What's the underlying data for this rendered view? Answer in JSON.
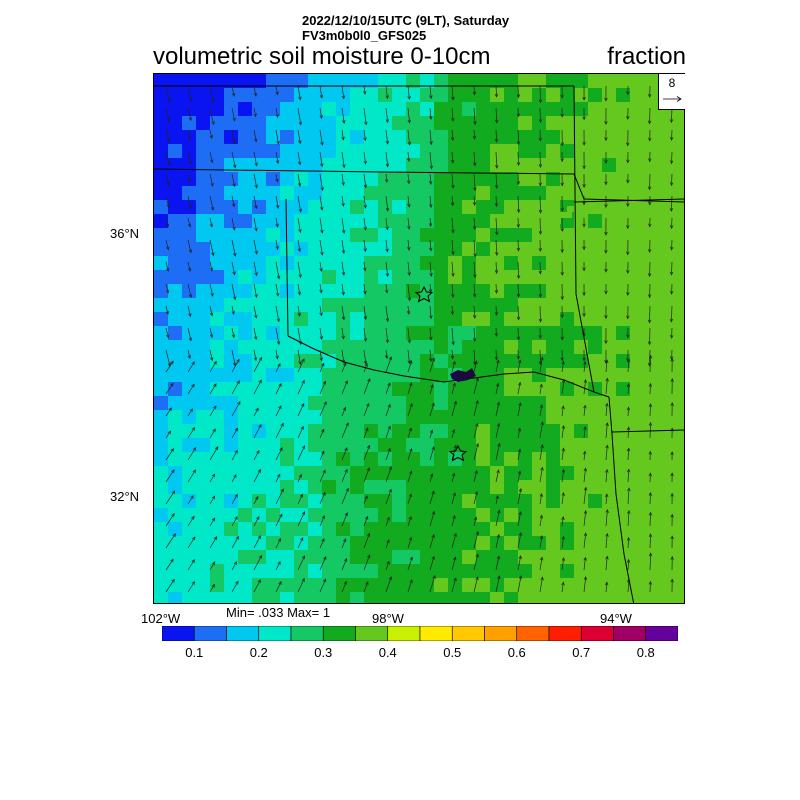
{
  "header": {
    "datetime": "2022/12/10/15UTC (9LT), Saturday",
    "model": "FV3m0b0l0_GFS025"
  },
  "map": {
    "variable_title": "volumetric soil moisture 0-10cm",
    "units": "fraction",
    "lat_labels": [
      "36°N",
      "32°N"
    ],
    "lon_labels": [
      "102°W",
      "98°W",
      "94°W"
    ],
    "stats": "Min= .033 Max= 1",
    "reference_vector": "8",
    "markers": [
      "star-marker",
      "star-marker"
    ]
  },
  "colorbar": {
    "colors": [
      "#0a14f0",
      "#1e6ef5",
      "#00c8f0",
      "#00e8c8",
      "#14c864",
      "#12aa1e",
      "#64c81e",
      "#c8f000",
      "#ffea00",
      "#ffc800",
      "#ffa000",
      "#ff6400",
      "#ff1e00",
      "#dc0032",
      "#a00064",
      "#64009b"
    ],
    "labels": [
      "0.1",
      "0.2",
      "0.3",
      "0.4",
      "0.5",
      "0.6",
      "0.7",
      "0.8"
    ]
  }
}
